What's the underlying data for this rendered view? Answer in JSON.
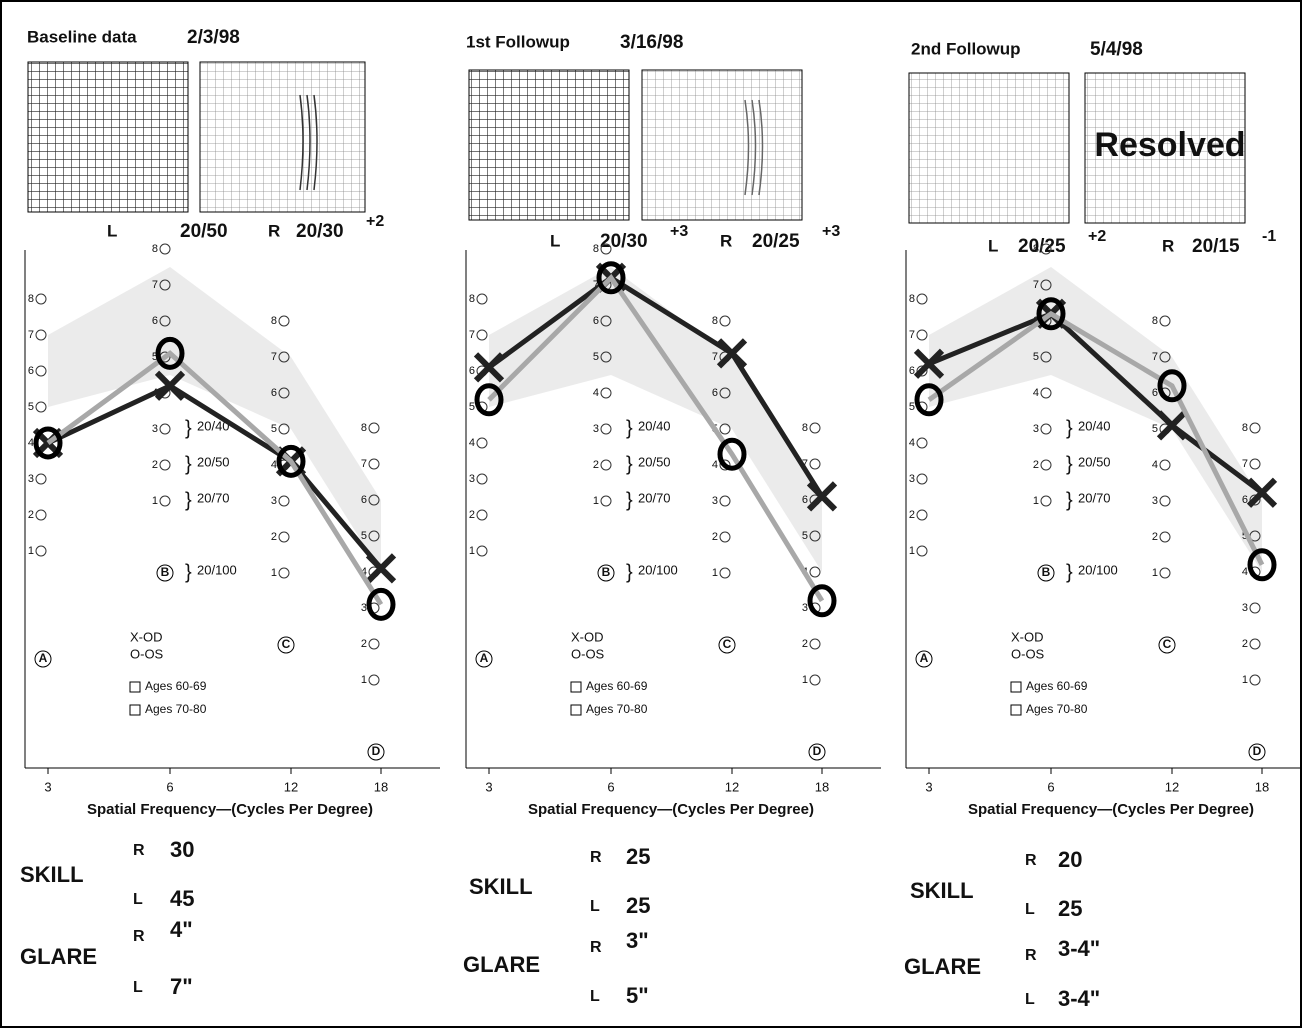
{
  "chart_data": [
    {
      "type": "line",
      "title": "Baseline data",
      "date": "2/3/98",
      "left_eye": {
        "label": "L",
        "acuity": "20/50"
      },
      "right_eye": {
        "label": "R",
        "acuity": "20/30",
        "modifier": "+2"
      },
      "categories": [
        3,
        6,
        12,
        18
      ],
      "levels": [
        1,
        2,
        3,
        4,
        5,
        6,
        7,
        8
      ],
      "column_letters": [
        "A",
        "B",
        "C",
        "D"
      ],
      "acuity_brackets": [
        "20/40",
        "20/50",
        "20/70",
        "20/100"
      ],
      "series": [
        {
          "name": "X-OD",
          "color": "#222222",
          "values": [
            4,
            4.2,
            4.1,
            4.1
          ]
        },
        {
          "name": "O-OS",
          "color": "#a8a8a8",
          "values": [
            4,
            5.1,
            4.1,
            3.1
          ]
        }
      ],
      "norm_groups": [
        "Ages 60-69",
        "Ages 70-80"
      ],
      "xlabel": "Spatial Frequency—(Cycles Per Degree)",
      "skill": {
        "label": "SKILL",
        "right": {
          "label": "R",
          "value": "30"
        },
        "left": {
          "label": "L",
          "value": "45"
        }
      },
      "glare": {
        "label": "GLARE",
        "right": {
          "label": "R",
          "value": "4\""
        },
        "left": {
          "label": "L",
          "value": "7\""
        }
      }
    },
    {
      "type": "line",
      "title": "1st Followup",
      "date": "3/16/98",
      "left_eye": {
        "label": "L",
        "acuity": "20/30",
        "modifier": "+3"
      },
      "right_eye": {
        "label": "R",
        "acuity": "20/25",
        "modifier": "+3"
      },
      "categories": [
        3,
        6,
        12,
        18
      ],
      "levels": [
        1,
        2,
        3,
        4,
        5,
        6,
        7,
        8
      ],
      "column_letters": [
        "A",
        "B",
        "C",
        "D"
      ],
      "acuity_brackets": [
        "20/40",
        "20/50",
        "20/70",
        "20/100"
      ],
      "series": [
        {
          "name": "X-OD",
          "color": "#222222",
          "values": [
            6.1,
            7.2,
            7.1,
            6.1
          ]
        },
        {
          "name": "O-OS",
          "color": "#a8a8a8",
          "values": [
            5.2,
            7.2,
            4.3,
            3.2
          ]
        }
      ],
      "norm_groups": [
        "Ages 60-69",
        "Ages 70-80"
      ],
      "xlabel": "Spatial Frequency—(Cycles Per Degree)",
      "skill": {
        "label": "SKILL",
        "right": {
          "label": "R",
          "value": "25"
        },
        "left": {
          "label": "L",
          "value": "25"
        }
      },
      "glare": {
        "label": "GLARE",
        "right": {
          "label": "R",
          "value": "3\""
        },
        "left": {
          "label": "L",
          "value": "5\""
        }
      }
    },
    {
      "type": "line",
      "title": "2nd Followup",
      "date": "5/4/98",
      "grid_note": "Resolved",
      "left_eye": {
        "label": "L",
        "acuity": "20/25",
        "modifier": "+2"
      },
      "right_eye": {
        "label": "R",
        "acuity": "20/15",
        "modifier": "-1"
      },
      "categories": [
        3,
        6,
        12,
        18
      ],
      "levels": [
        1,
        2,
        3,
        4,
        5,
        6,
        7,
        8
      ],
      "column_letters": [
        "A",
        "B",
        "C",
        "D"
      ],
      "acuity_brackets": [
        "20/40",
        "20/50",
        "20/70",
        "20/100"
      ],
      "series": [
        {
          "name": "X-OD",
          "color": "#222222",
          "values": [
            6.2,
            6.2,
            5.1,
            6.2
          ]
        },
        {
          "name": "O-OS",
          "color": "#a8a8a8",
          "values": [
            5.2,
            6.2,
            6.2,
            4.2
          ]
        }
      ],
      "norm_groups": [
        "Ages 60-69",
        "Ages 70-80"
      ],
      "xlabel": "Spatial Frequency—(Cycles Per Degree)",
      "skill": {
        "label": "SKILL",
        "right": {
          "label": "R",
          "value": "20"
        },
        "left": {
          "label": "L",
          "value": "25"
        }
      },
      "glare": {
        "label": "GLARE",
        "right": {
          "label": "R",
          "value": "3-4\""
        },
        "left": {
          "label": "L",
          "value": "3-4\""
        }
      }
    }
  ]
}
